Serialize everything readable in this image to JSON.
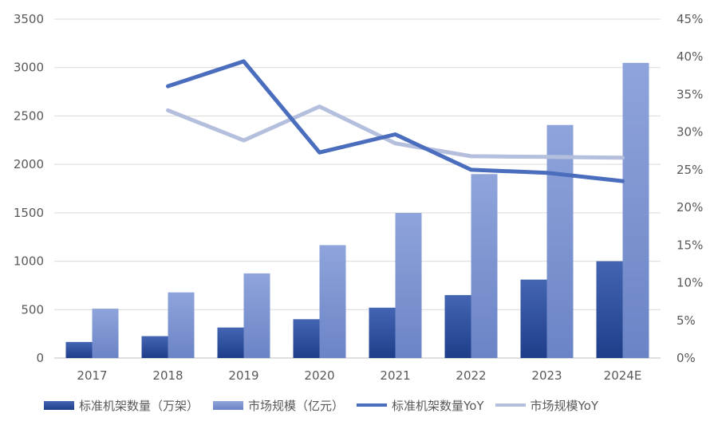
{
  "chart_data": {
    "type": "bar",
    "categories": [
      "2017",
      "2018",
      "2019",
      "2020",
      "2021",
      "2022",
      "2023",
      "2024E"
    ],
    "series": [
      {
        "name": "标准机架数量（万架）",
        "kind": "bar",
        "axis": "left",
        "color": "#2E4E9A",
        "values": [
          166,
          226,
          315,
          401,
          520,
          650,
          810,
          1000
        ]
      },
      {
        "name": "市场规模（亿元）",
        "kind": "bar",
        "axis": "left",
        "color": "#8097D3",
        "values": [
          510,
          678,
          874,
          1166,
          1498,
          1900,
          2407,
          3048
        ]
      },
      {
        "name": "标准机架数量YoY",
        "kind": "line",
        "axis": "right",
        "color": "#4A6DBE",
        "values": [
          null,
          36.1,
          39.4,
          27.3,
          29.7,
          25.0,
          24.6,
          23.5
        ]
      },
      {
        "name": "市场规模YoY",
        "kind": "line",
        "axis": "right",
        "color": "#B4BEDD",
        "values": [
          null,
          32.9,
          28.9,
          33.4,
          28.5,
          26.8,
          26.7,
          26.6
        ]
      }
    ],
    "left_axis": {
      "ylim": [
        0,
        3500
      ],
      "ticks": [
        "0",
        "500",
        "1000",
        "1500",
        "2000",
        "2500",
        "3000",
        "3500"
      ]
    },
    "right_axis": {
      "ylim": [
        0,
        45
      ],
      "ticks": [
        "0%",
        "5%",
        "10%",
        "15%",
        "20%",
        "25%",
        "30%",
        "35%",
        "40%",
        "45%"
      ]
    },
    "grid": true,
    "legend_position": "bottom"
  }
}
